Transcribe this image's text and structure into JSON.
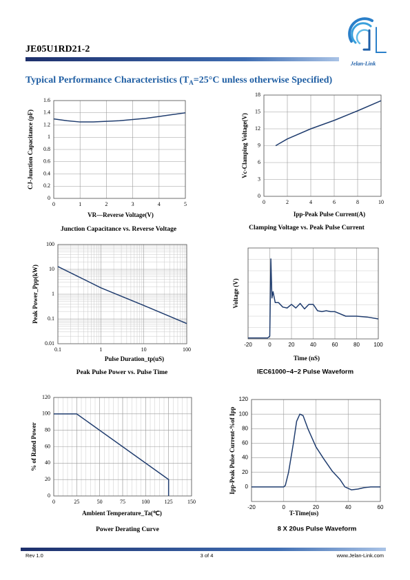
{
  "header": {
    "part_number": "JE05U1RD21-2",
    "logo_text": "Jelan-Link"
  },
  "section_title": {
    "prefix": "Typical Performance Characteristics (T",
    "subscript": "A",
    "suffix": "=25°C unless otherwise Specified)"
  },
  "chart_data": [
    {
      "type": "line",
      "color": "#1f3c6e",
      "grid": true,
      "x_label": "VR—Reverse Voltage(V)",
      "y_label": "CJ-Junction Capacitance (pF)",
      "caption": "Junction Capacitance vs. Reverse Voltage",
      "x": [
        0,
        0.5,
        1,
        1.5,
        2,
        2.5,
        3,
        3.5,
        4,
        4.5,
        5
      ],
      "values": [
        1.3,
        1.27,
        1.25,
        1.25,
        1.26,
        1.27,
        1.29,
        1.31,
        1.34,
        1.37,
        1.4
      ],
      "xlim": [
        0,
        5
      ],
      "xticks": [
        0,
        1,
        2,
        3,
        4,
        5
      ],
      "ylim": [
        0,
        1.6
      ],
      "yticks": [
        0,
        0.2,
        0.4,
        0.6,
        0.8,
        1,
        1.2,
        1.4,
        1.6
      ]
    },
    {
      "type": "line",
      "color": "#1f3c6e",
      "grid": true,
      "x_label": "Ipp-Peak Pulse Current(A)",
      "y_label": "Vc-Clamping Voltage(V)",
      "caption": "Clamping Voltage vs. Peak Pulse Current",
      "x": [
        1,
        2,
        4,
        6,
        8,
        10
      ],
      "values": [
        9,
        10.2,
        12,
        13.5,
        15.2,
        17
      ],
      "xlim": [
        0,
        10
      ],
      "xticks": [
        0,
        2,
        4,
        6,
        8,
        10
      ],
      "ylim": [
        0,
        18
      ],
      "yticks": [
        0,
        3,
        6,
        9,
        12,
        15,
        18
      ]
    },
    {
      "type": "line",
      "color": "#1f3c6e",
      "grid": true,
      "log_x": true,
      "log_y": true,
      "x_label": "Pulse Duration_tp(uS)",
      "y_label": "Peak  Power_Ppp(kW)",
      "caption": "Peak Pulse Power vs. Pulse Time",
      "x": [
        0.1,
        1,
        10,
        100
      ],
      "values": [
        13,
        1.8,
        0.35,
        0.065
      ],
      "xlim": [
        0.1,
        100
      ],
      "xticks": [
        0.1,
        1,
        10,
        100
      ],
      "ylim": [
        0.01,
        100
      ],
      "yticks": [
        0.01,
        0.1,
        1,
        10,
        100
      ]
    },
    {
      "type": "line",
      "color": "#1f3c6e",
      "grid": true,
      "x_label": "Time  (nS)",
      "y_label": "Voltage (V)",
      "caption": "IEC61000−4−2 Pulse Waveform",
      "x": [
        -20,
        -10,
        -2,
        0,
        1,
        2,
        3,
        5,
        8,
        12,
        16,
        20,
        24,
        28,
        32,
        36,
        40,
        44,
        48,
        52,
        56,
        60,
        70,
        80,
        90,
        100
      ],
      "values": [
        1,
        1,
        1,
        3,
        88,
        45,
        52,
        40,
        40,
        35,
        34,
        38,
        34,
        39,
        33,
        38,
        38,
        31,
        30,
        31,
        30,
        30,
        25,
        25,
        24,
        22
      ],
      "xlim": [
        -20,
        100
      ],
      "xticks": [
        -20,
        0,
        20,
        40,
        60,
        80,
        100
      ],
      "ylim": [
        0,
        100
      ]
    },
    {
      "type": "line",
      "color": "#1f3c6e",
      "grid": true,
      "x_label": "Ambient  Temperature_Ta(℃)",
      "y_label": "% of Rated Power",
      "caption": "Power Derating Curve",
      "x": [
        0,
        25,
        125,
        125
      ],
      "values": [
        100,
        100,
        20,
        0
      ],
      "xlim": [
        0,
        150
      ],
      "xticks": [
        0,
        25,
        50,
        75,
        100,
        125,
        150
      ],
      "ylim": [
        0,
        120
      ],
      "yticks": [
        0,
        20,
        40,
        60,
        80,
        100,
        120
      ]
    },
    {
      "type": "line",
      "color": "#1f3c6e",
      "grid": true,
      "x_label": "T-Time(us)",
      "y_label": "Ipp-Peak Pulse Current-%of Ipp",
      "caption": "8 X 20us Pulse Waveform",
      "x": [
        -20,
        -10,
        0,
        1,
        3,
        6,
        8,
        10,
        12,
        15,
        20,
        25,
        30,
        35,
        38,
        42,
        46,
        50,
        54,
        60
      ],
      "values": [
        0,
        0,
        0,
        2,
        20,
        60,
        90,
        100,
        98,
        80,
        55,
        38,
        22,
        10,
        0,
        -4,
        -3,
        -1,
        0,
        0
      ],
      "xlim": [
        -20,
        60
      ],
      "xticks": [
        -20,
        0,
        20,
        40,
        60
      ],
      "ylim": [
        -20,
        120
      ],
      "yticks": [
        0,
        20,
        40,
        60,
        80,
        100,
        120
      ]
    }
  ],
  "footer": {
    "revision": "Rev 1.0",
    "page": "3 of  4",
    "website": "www.Jelan-Link.com"
  }
}
